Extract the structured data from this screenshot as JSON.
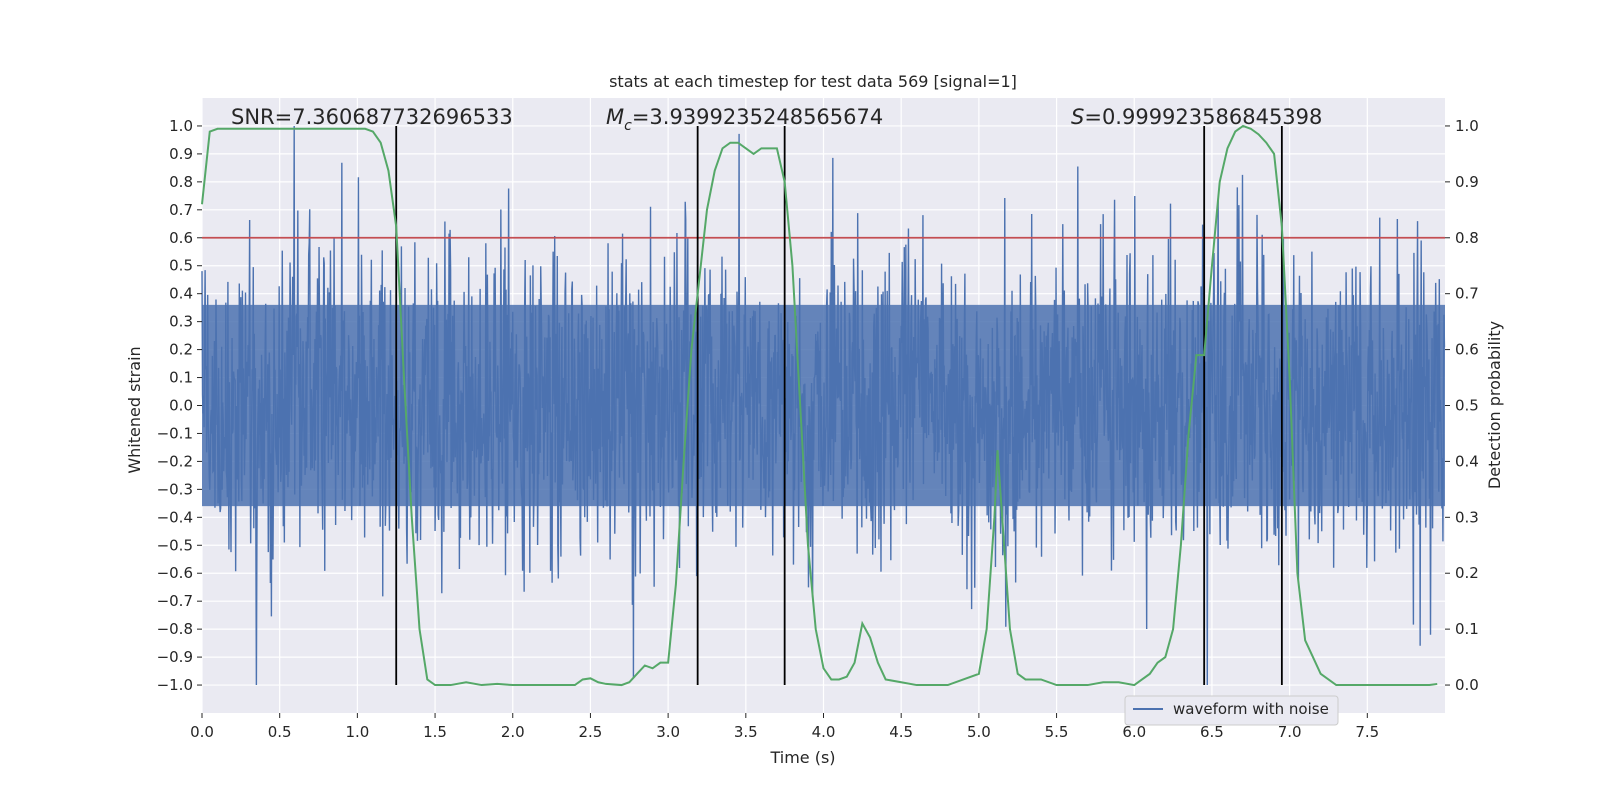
{
  "chart_data": {
    "type": "line",
    "title": "stats at each timestep for test data 569 [signal=1]",
    "xlabel": "Time (s)",
    "ylabel": "Whitened strain",
    "y2label": "Detection probability",
    "xlim": [
      0.0,
      8.0
    ],
    "ylim": [
      -1.1,
      1.1
    ],
    "y2lim": [
      -0.05,
      1.05
    ],
    "xticks": [
      "0.0",
      "0.5",
      "1.0",
      "1.5",
      "2.0",
      "2.5",
      "3.0",
      "3.5",
      "4.0",
      "4.5",
      "5.0",
      "5.5",
      "6.0",
      "6.5",
      "7.0",
      "7.5"
    ],
    "yticks": [
      "1.0",
      "0.9",
      "0.8",
      "0.7",
      "0.6",
      "0.5",
      "0.4",
      "0.3",
      "0.2",
      "0.1",
      "0.0",
      "−0.1",
      "−0.2",
      "−0.3",
      "−0.4",
      "−0.5",
      "−0.6",
      "−0.7",
      "−0.8",
      "−0.9",
      "−1.0"
    ],
    "y2ticks": [
      "1.0",
      "0.9",
      "0.8",
      "0.7",
      "0.6",
      "0.5",
      "0.4",
      "0.3",
      "0.2",
      "0.1",
      "0.0"
    ],
    "grid": true,
    "legend": {
      "position": "lower-center",
      "entries": [
        "waveform with noise"
      ]
    },
    "annotations": {
      "snr": "SNR=7.360687732696533",
      "mc_symbol": "M",
      "mc_sub": "c",
      "mc_value": "=3.9399235248565674",
      "s_symbol": "S",
      "s_value": "=0.999923586845398"
    },
    "threshold": {
      "y2": 0.8,
      "color": "#c44e52"
    },
    "vertical_lines_x": [
      1.25,
      3.19,
      3.75,
      6.45,
      6.95
    ],
    "series": [
      {
        "name": "waveform with noise",
        "color": "#4c72b0",
        "description_values": "noise amplitude envelope",
        "noise_seed": 569
      },
      {
        "color": "#55a868",
        "axis": "y2",
        "x": [
          0.0,
          0.05,
          0.1,
          0.2,
          0.3,
          0.4,
          0.5,
          0.6,
          0.7,
          0.8,
          0.9,
          1.0,
          1.05,
          1.1,
          1.15,
          1.2,
          1.25,
          1.3,
          1.35,
          1.4,
          1.45,
          1.5,
          1.55,
          1.6,
          1.7,
          1.8,
          1.9,
          2.0,
          2.2,
          2.4,
          2.45,
          2.5,
          2.55,
          2.6,
          2.7,
          2.75,
          2.8,
          2.85,
          2.9,
          2.95,
          3.0,
          3.05,
          3.1,
          3.15,
          3.19,
          3.25,
          3.3,
          3.35,
          3.4,
          3.45,
          3.5,
          3.55,
          3.6,
          3.7,
          3.75,
          3.8,
          3.85,
          3.9,
          3.95,
          4.0,
          4.05,
          4.1,
          4.15,
          4.2,
          4.25,
          4.3,
          4.35,
          4.4,
          4.5,
          4.6,
          4.7,
          4.8,
          4.9,
          5.0,
          5.05,
          5.1,
          5.12,
          5.15,
          5.2,
          5.25,
          5.3,
          5.4,
          5.5,
          5.6,
          5.7,
          5.8,
          5.9,
          6.0,
          6.05,
          6.1,
          6.15,
          6.2,
          6.25,
          6.3,
          6.35,
          6.4,
          6.45,
          6.5,
          6.55,
          6.6,
          6.65,
          6.7,
          6.75,
          6.8,
          6.85,
          6.9,
          6.95,
          7.0,
          7.05,
          7.1,
          7.15,
          7.2,
          7.3,
          7.4,
          7.5,
          7.6,
          7.7,
          7.8,
          7.9,
          7.95
        ],
        "y": [
          0.86,
          0.99,
          0.995,
          0.995,
          0.995,
          0.995,
          0.995,
          0.995,
          0.995,
          0.995,
          0.995,
          0.995,
          0.995,
          0.99,
          0.97,
          0.92,
          0.82,
          0.55,
          0.3,
          0.1,
          0.01,
          0.0,
          0.0,
          0.0,
          0.005,
          0.0,
          0.002,
          0.0,
          0.0,
          0.0,
          0.01,
          0.012,
          0.005,
          0.002,
          0.0,
          0.005,
          0.02,
          0.035,
          0.03,
          0.04,
          0.04,
          0.18,
          0.4,
          0.6,
          0.7,
          0.85,
          0.92,
          0.96,
          0.97,
          0.97,
          0.96,
          0.95,
          0.96,
          0.96,
          0.9,
          0.75,
          0.5,
          0.25,
          0.1,
          0.03,
          0.01,
          0.01,
          0.015,
          0.04,
          0.11,
          0.085,
          0.04,
          0.01,
          0.005,
          0.0,
          0.0,
          0.0,
          0.01,
          0.02,
          0.1,
          0.3,
          0.42,
          0.3,
          0.1,
          0.02,
          0.01,
          0.01,
          0.0,
          0.0,
          0.0,
          0.005,
          0.005,
          0.0,
          0.01,
          0.02,
          0.04,
          0.05,
          0.1,
          0.25,
          0.45,
          0.59,
          0.59,
          0.75,
          0.9,
          0.96,
          0.99,
          1.0,
          0.995,
          0.985,
          0.97,
          0.95,
          0.82,
          0.55,
          0.2,
          0.08,
          0.05,
          0.02,
          0.0,
          0.0,
          0.0,
          0.0,
          0.0,
          0.0,
          0.0,
          0.002
        ]
      }
    ]
  }
}
